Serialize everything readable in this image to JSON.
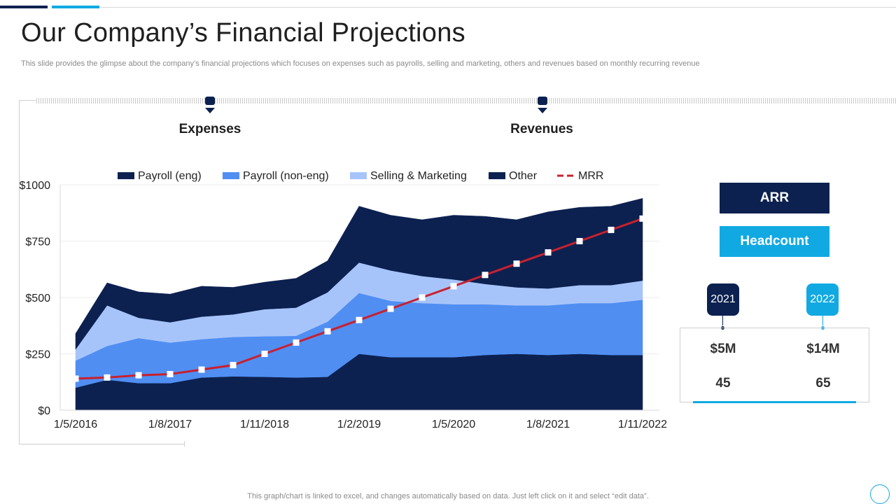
{
  "title": "Our Company’s Financial Projections",
  "subtitle": "This slide provides the glimpse about the company’s financial projections which focuses on expenses such as payrolls, selling and marketing, others and revenues based on monthly recurring revenue",
  "sections": {
    "expenses": "Expenses",
    "revenues": "Revenues"
  },
  "colors": {
    "navy": "#0c2150",
    "blue": "#508ef2",
    "light_blue": "#a7c4fa",
    "cyan": "#11a9e2",
    "mrr_red": "#c8202f"
  },
  "chart_data": {
    "type": "area",
    "title": "",
    "xlabel": "",
    "ylabel": "",
    "ylim": [
      0,
      1000
    ],
    "yticks": [
      0,
      250,
      500,
      750,
      1000
    ],
    "ytick_labels": [
      "$0",
      "$250",
      "$500",
      "$750",
      "$1000"
    ],
    "x_tick_labels": [
      "1/5/2016",
      "1/8/2017",
      "1/11/2018",
      "1/2/2019",
      "1/5/2020",
      "1/8/2021",
      "1/11/2022"
    ],
    "x_tick_positions": [
      0,
      3.5,
      7,
      10.5,
      14,
      17.5,
      21
    ],
    "stacked": true,
    "series": [
      {
        "name": "Payroll (eng)",
        "color": "#0c2150",
        "values": [
          100,
          135,
          120,
          120,
          145,
          150,
          148,
          145,
          148,
          250,
          235,
          235,
          235,
          245,
          250,
          245,
          250,
          245,
          245
        ]
      },
      {
        "name": "Payroll (non-eng)",
        "color": "#508ef2",
        "values": [
          120,
          150,
          200,
          180,
          170,
          175,
          180,
          185,
          245,
          270,
          250,
          240,
          235,
          225,
          215,
          220,
          225,
          230,
          245
        ]
      },
      {
        "name": "Selling & Marketing",
        "color": "#a7c4fa",
        "values": [
          50,
          180,
          90,
          90,
          100,
          100,
          120,
          125,
          130,
          135,
          135,
          120,
          110,
          90,
          80,
          75,
          80,
          80,
          85
        ]
      },
      {
        "name": "Other",
        "color": "#0c2150",
        "values": [
          70,
          100,
          115,
          125,
          135,
          120,
          120,
          130,
          140,
          250,
          245,
          250,
          285,
          300,
          300,
          340,
          345,
          350,
          365
        ]
      }
    ],
    "line_series": {
      "name": "MRR",
      "color": "#c8202f",
      "values": [
        140,
        145,
        155,
        160,
        180,
        200,
        250,
        300,
        350,
        400,
        450,
        500,
        550,
        600,
        650,
        700,
        750,
        800,
        850
      ]
    },
    "legend": [
      "Payroll (eng)",
      "Payroll (non-eng)",
      "Selling & Marketing",
      "Other",
      "MRR"
    ]
  },
  "panel": {
    "arr_label": "ARR",
    "headcount_label": "Headcount",
    "years": [
      "2021",
      "2022"
    ],
    "arr_values": [
      "$5M",
      "$14M"
    ],
    "headcount_values": [
      "45",
      "65"
    ]
  },
  "footnote": "This graph/chart is linked to excel, and changes automatically based on data. Just left click on it and select “edit data”."
}
